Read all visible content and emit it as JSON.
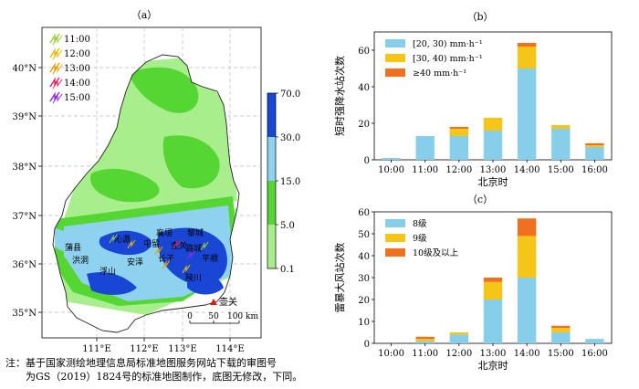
{
  "chart_data": [
    {
      "panel": "(a)",
      "type": "heatmap",
      "x_ticks": [
        "111°E",
        "112°E",
        "113°E",
        "114°E"
      ],
      "y_ticks": [
        "35°N",
        "36°N",
        "37°N",
        "38°N",
        "39°N",
        "40°N"
      ],
      "colorbar": {
        "ticks": [
          "70.0",
          "30.0",
          "15.0",
          "5.0",
          "0.1"
        ],
        "colors": [
          "#1a46d6",
          "#8ed2f0",
          "#55d633",
          "#a8ee8c"
        ]
      },
      "legend": [
        {
          "time": "11:00",
          "color": "#9acd32"
        },
        {
          "time": "12:00",
          "color": "#e8b800"
        },
        {
          "time": "13:00",
          "color": "#e8a000"
        },
        {
          "time": "14:00",
          "color": "#e0205a"
        },
        {
          "time": "15:00",
          "color": "#8a2be2"
        }
      ],
      "cities": [
        "沁源",
        "屯留",
        "襄垣",
        "黎城",
        "长子",
        "洪洞",
        "浮山",
        "安泽",
        "潞城",
        "壶关",
        "平顺",
        "陵川",
        "蒲县"
      ],
      "station": "壶关",
      "scalebar": {
        "labels": [
          "0",
          "50",
          "100 km"
        ]
      }
    },
    {
      "panel": "(b)",
      "type": "bar",
      "categories": [
        "10:00",
        "11:00",
        "12:00",
        "13:00",
        "14:00",
        "15:00",
        "16:00"
      ],
      "xlabel": "北京时",
      "ylabel": "短时强降水站次数",
      "ylim": [
        0,
        70
      ],
      "yticks": [
        0,
        20,
        40,
        60
      ],
      "series": [
        {
          "name": "[20, 30) mm·h⁻¹",
          "color": "#87ceeb",
          "values": [
            1,
            13,
            13,
            16,
            50,
            17,
            7
          ]
        },
        {
          "name": "[30, 40) mm·h⁻¹",
          "color": "#f5c518",
          "values": [
            0,
            0,
            4,
            7,
            12,
            2,
            1
          ]
        },
        {
          "name": "≥40 mm·h⁻¹",
          "color": "#f07020",
          "values": [
            0,
            0,
            1,
            0,
            2,
            0,
            1
          ]
        }
      ],
      "legend_position": "top-left"
    },
    {
      "panel": "(c)",
      "type": "bar",
      "categories": [
        "10:00",
        "11:00",
        "12:00",
        "13:00",
        "14:00",
        "15:00",
        "16:00"
      ],
      "xlabel": "北京时",
      "ylabel": "雷暴大风站次数",
      "ylim": [
        0,
        60
      ],
      "yticks": [
        0,
        10,
        20,
        30,
        40,
        50,
        60
      ],
      "series": [
        {
          "name": "8级",
          "color": "#87ceeb",
          "values": [
            0,
            1,
            4,
            20,
            30,
            5,
            2
          ]
        },
        {
          "name": "9级",
          "color": "#f5c518",
          "values": [
            0,
            1,
            1,
            8,
            19,
            2,
            0
          ]
        },
        {
          "name": "10级及以上",
          "color": "#f07020",
          "values": [
            0,
            1,
            0,
            2,
            8,
            1,
            0
          ]
        }
      ],
      "legend_position": "top-left"
    }
  ],
  "note": {
    "line1": "注：基于国家测绘地理信息局标准地图服务网站下载的审图号",
    "line2": "为GS（2019）1824号的标准地图制作，底图无修改，下同。"
  }
}
